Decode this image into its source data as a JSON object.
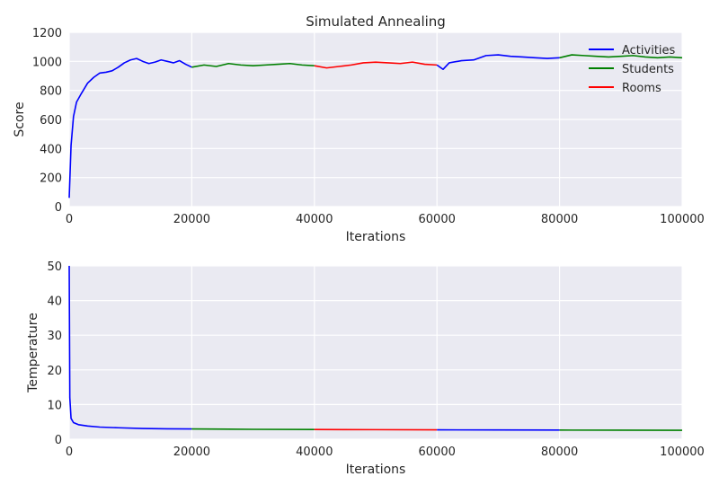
{
  "chart_data": [
    {
      "type": "line",
      "title": "Simulated Annealing",
      "xlabel": "Iterations",
      "ylabel": "Score",
      "xlim": [
        0,
        100000
      ],
      "ylim": [
        0,
        1200
      ],
      "x_ticks": [
        0,
        20000,
        40000,
        60000,
        80000,
        100000
      ],
      "y_ticks": [
        0,
        200,
        400,
        600,
        800,
        1000,
        1200
      ],
      "grid": true,
      "legend_position": "top-right",
      "legend": [
        {
          "name": "Activities",
          "color": "#0000ff"
        },
        {
          "name": "Students",
          "color": "#008000"
        },
        {
          "name": "Rooms",
          "color": "#ff0000"
        }
      ],
      "series": [
        {
          "name": "Activities",
          "color": "#0000ff",
          "points": [
            [
              0,
              60
            ],
            [
              300,
              420
            ],
            [
              700,
              620
            ],
            [
              1200,
              720
            ],
            [
              2000,
              780
            ],
            [
              3000,
              850
            ],
            [
              4000,
              890
            ],
            [
              5000,
              920
            ],
            [
              6000,
              925
            ],
            [
              7000,
              935
            ],
            [
              8000,
              960
            ],
            [
              9000,
              990
            ],
            [
              10000,
              1010
            ],
            [
              11000,
              1020
            ],
            [
              12000,
              1000
            ],
            [
              13000,
              985
            ],
            [
              14000,
              995
            ],
            [
              15000,
              1010
            ],
            [
              16000,
              1000
            ],
            [
              17000,
              990
            ],
            [
              18000,
              1005
            ],
            [
              19000,
              980
            ],
            [
              20000,
              960
            ]
          ]
        },
        {
          "name": "Students",
          "color": "#008000",
          "points": [
            [
              20000,
              960
            ],
            [
              22000,
              975
            ],
            [
              24000,
              965
            ],
            [
              26000,
              985
            ],
            [
              28000,
              975
            ],
            [
              30000,
              970
            ],
            [
              32000,
              975
            ],
            [
              34000,
              980
            ],
            [
              36000,
              985
            ],
            [
              38000,
              975
            ],
            [
              40000,
              970
            ]
          ]
        },
        {
          "name": "Rooms",
          "color": "#ff0000",
          "points": [
            [
              40000,
              970
            ],
            [
              42000,
              955
            ],
            [
              44000,
              965
            ],
            [
              46000,
              975
            ],
            [
              48000,
              990
            ],
            [
              50000,
              995
            ],
            [
              52000,
              990
            ],
            [
              54000,
              985
            ],
            [
              56000,
              995
            ],
            [
              58000,
              980
            ],
            [
              60000,
              975
            ]
          ]
        },
        {
          "name": "Activities",
          "color": "#0000ff",
          "points": [
            [
              60000,
              975
            ],
            [
              61000,
              945
            ],
            [
              62000,
              990
            ],
            [
              64000,
              1005
            ],
            [
              66000,
              1010
            ],
            [
              68000,
              1040
            ],
            [
              70000,
              1045
            ],
            [
              72000,
              1035
            ],
            [
              74000,
              1030
            ],
            [
              76000,
              1025
            ],
            [
              78000,
              1020
            ],
            [
              80000,
              1025
            ]
          ]
        },
        {
          "name": "Students",
          "color": "#008000",
          "points": [
            [
              80000,
              1025
            ],
            [
              82000,
              1045
            ],
            [
              84000,
              1040
            ],
            [
              86000,
              1035
            ],
            [
              88000,
              1030
            ],
            [
              90000,
              1035
            ],
            [
              92000,
              1040
            ],
            [
              94000,
              1030
            ],
            [
              96000,
              1025
            ],
            [
              98000,
              1030
            ],
            [
              100000,
              1025
            ]
          ]
        }
      ]
    },
    {
      "type": "line",
      "title": "",
      "xlabel": "Iterations",
      "ylabel": "Temperature",
      "xlim": [
        0,
        100000
      ],
      "ylim": [
        0,
        50
      ],
      "x_ticks": [
        0,
        20000,
        40000,
        60000,
        80000,
        100000
      ],
      "y_ticks": [
        0,
        10,
        20,
        30,
        40,
        50
      ],
      "grid": true,
      "series": [
        {
          "name": "Activities",
          "color": "#0000ff",
          "points": [
            [
              0,
              50
            ],
            [
              100,
              12
            ],
            [
              300,
              6
            ],
            [
              700,
              4.8
            ],
            [
              1500,
              4.2
            ],
            [
              3000,
              3.8
            ],
            [
              5000,
              3.5
            ],
            [
              8000,
              3.3
            ],
            [
              12000,
              3.1
            ],
            [
              16000,
              3.0
            ],
            [
              20000,
              2.95
            ]
          ]
        },
        {
          "name": "Students",
          "color": "#008000",
          "points": [
            [
              20000,
              2.95
            ],
            [
              30000,
              2.85
            ],
            [
              40000,
              2.8
            ]
          ]
        },
        {
          "name": "Rooms",
          "color": "#ff0000",
          "points": [
            [
              40000,
              2.8
            ],
            [
              50000,
              2.75
            ],
            [
              60000,
              2.7
            ]
          ]
        },
        {
          "name": "Activities",
          "color": "#0000ff",
          "points": [
            [
              60000,
              2.7
            ],
            [
              70000,
              2.66
            ],
            [
              80000,
              2.63
            ]
          ]
        },
        {
          "name": "Students",
          "color": "#008000",
          "points": [
            [
              80000,
              2.63
            ],
            [
              90000,
              2.6
            ],
            [
              100000,
              2.58
            ]
          ]
        }
      ]
    }
  ],
  "style": {
    "plot_bg": "#eaeaf2",
    "grid_color": "#ffffff",
    "text_color": "#262626"
  }
}
